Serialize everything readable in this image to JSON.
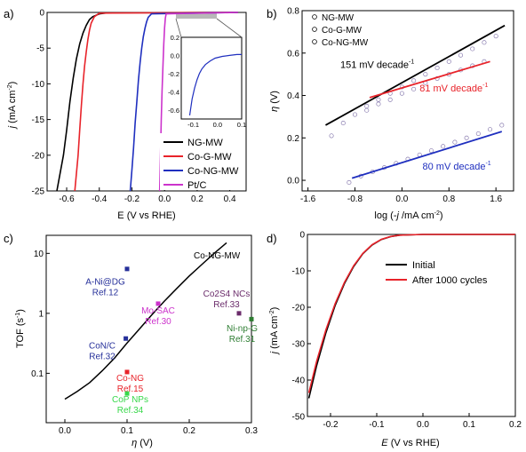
{
  "colors": {
    "black": "#000000",
    "red": "#e8232a",
    "blue": "#1f2fbf",
    "magenta": "#cc33cc",
    "green": "#2e7d32",
    "lightgreen": "#37d84a",
    "purple": "#6b2c6b",
    "darkblue": "#26309a",
    "grey": "#9e9e9e"
  },
  "chart_data": [
    {
      "panel": "a)",
      "type": "line",
      "xlabel": "E (V vs RHE)",
      "ylabel": "j (mA cm-2)",
      "xlim": [
        -0.72,
        0.5
      ],
      "ylim": [
        -25,
        0
      ],
      "xticks": [
        "-0.6",
        "-0.4",
        "-0.2",
        "0.0",
        "0.2",
        "0.4"
      ],
      "xtick_values": [
        -0.6,
        -0.4,
        -0.2,
        0.0,
        0.2,
        0.4
      ],
      "yticks": [
        "0",
        "-5",
        "-10",
        "-15",
        "-20",
        "-25"
      ],
      "ytick_values": [
        0,
        -5,
        -10,
        -15,
        -20,
        -25
      ],
      "legend_position": "bottom-right",
      "series": [
        {
          "name": "NG-MW",
          "color": "black",
          "x": [
            -0.66,
            -0.62,
            -0.6,
            -0.58,
            -0.56,
            -0.54,
            -0.52,
            -0.5,
            -0.48,
            -0.46,
            -0.44,
            -0.4,
            -0.35,
            0.45
          ],
          "y": [
            -25,
            -20,
            -16.5,
            -12.5,
            -9.2,
            -6.5,
            -4.4,
            -2.9,
            -1.8,
            -1.0,
            -0.6,
            -0.2,
            -0.05,
            0
          ]
        },
        {
          "name": "Co-G-MW",
          "color": "red",
          "x": [
            -0.55,
            -0.53,
            -0.52,
            -0.51,
            -0.5,
            -0.49,
            -0.48,
            -0.47,
            -0.46,
            -0.45,
            -0.43,
            -0.4,
            0.45
          ],
          "y": [
            -25,
            -20,
            -16.5,
            -13,
            -10,
            -7.5,
            -5.5,
            -3.8,
            -2.5,
            -1.5,
            -0.6,
            -0.1,
            0
          ]
        },
        {
          "name": "Co-NG-MW",
          "color": "blue",
          "x": [
            -0.21,
            -0.2,
            -0.19,
            -0.18,
            -0.17,
            -0.16,
            -0.15,
            -0.14,
            -0.13,
            -0.12,
            -0.11,
            -0.1,
            -0.08,
            0.45
          ],
          "y": [
            -25,
            -22,
            -19,
            -15.5,
            -12.5,
            -9.5,
            -7,
            -5,
            -3.4,
            -2.2,
            -1.3,
            -0.7,
            -0.2,
            0
          ]
        },
        {
          "name": "Pt/C",
          "color": "magenta",
          "x": [
            -0.03,
            -0.025,
            -0.02,
            -0.015,
            -0.01,
            -0.005,
            0.0,
            0.005,
            0.01,
            0.45
          ],
          "y": [
            -25,
            -20,
            -15,
            -11,
            -7.5,
            -4.5,
            -2.2,
            -0.8,
            -0.2,
            0
          ]
        }
      ],
      "inset": {
        "xlim": [
          -0.15,
          0.1
        ],
        "ylim": [
          -0.7,
          0.2
        ],
        "xticks": [
          "-0.1",
          "0.0",
          "0.1"
        ],
        "xtick_values": [
          -0.1,
          0.0,
          0.1
        ],
        "yticks": [
          "0.2",
          "0.0",
          "-0.2",
          "-0.4",
          "-0.6"
        ],
        "ytick_values": [
          0.2,
          0.0,
          -0.2,
          -0.4,
          -0.6
        ],
        "series": [
          {
            "name": "Co-NG-MW",
            "color": "blue",
            "x": [
              -0.115,
              -0.105,
              -0.095,
              -0.085,
              -0.075,
              -0.065,
              -0.05,
              -0.03,
              -0.01,
              0.02,
              0.05,
              0.08,
              0.1
            ],
            "y": [
              -0.66,
              -0.48,
              -0.36,
              -0.27,
              -0.2,
              -0.15,
              -0.1,
              -0.06,
              -0.03,
              -0.01,
              0.0,
              0.01,
              0.01
            ]
          }
        ]
      }
    },
    {
      "panel": "b)",
      "type": "scatter",
      "xlabel": "log (-j /mA cm-2)",
      "ylabel": "η (V)",
      "xlim": [
        -1.7,
        1.9
      ],
      "ylim": [
        -0.05,
        0.8
      ],
      "xticks": [
        "-1.6",
        "-0.8",
        "0.0",
        "0.8",
        "1.6"
      ],
      "xtick_values": [
        -1.6,
        -0.8,
        0.0,
        0.8,
        1.6
      ],
      "yticks": [
        "0.0",
        "0.2",
        "0.4",
        "0.6",
        "0.8"
      ],
      "ytick_values": [
        0.0,
        0.2,
        0.4,
        0.6,
        0.8
      ],
      "legend_position": "top-left",
      "series": [
        {
          "name": "NG-MW",
          "color": "black",
          "x": [
            -1.2,
            -1.0,
            -0.8,
            -0.6,
            -0.4,
            -0.2,
            0.0,
            0.2,
            0.4,
            0.6,
            0.8,
            1.0,
            1.2,
            1.4,
            1.6
          ],
          "y": [
            0.21,
            0.27,
            0.31,
            0.35,
            0.38,
            0.41,
            0.44,
            0.47,
            0.5,
            0.53,
            0.56,
            0.59,
            0.62,
            0.65,
            0.68
          ]
        },
        {
          "name": "Co-G-MW",
          "color": "red",
          "x": [
            -0.6,
            -0.4,
            -0.2,
            0.0,
            0.2,
            0.4,
            0.6,
            0.8,
            1.0,
            1.2,
            1.4
          ],
          "y": [
            0.33,
            0.36,
            0.38,
            0.41,
            0.43,
            0.46,
            0.48,
            0.5,
            0.52,
            0.54,
            0.56
          ]
        },
        {
          "name": "Co-NG-MW",
          "color": "blue",
          "x": [
            -0.9,
            -0.7,
            -0.5,
            -0.3,
            -0.1,
            0.1,
            0.3,
            0.5,
            0.7,
            0.9,
            1.1,
            1.3,
            1.5,
            1.7
          ],
          "y": [
            -0.01,
            0.02,
            0.04,
            0.06,
            0.08,
            0.1,
            0.12,
            0.14,
            0.16,
            0.18,
            0.2,
            0.22,
            0.24,
            0.26
          ]
        }
      ],
      "fits": [
        {
          "color": "black",
          "x1": -1.3,
          "y1": 0.26,
          "x2": 1.75,
          "y2": 0.73,
          "label": "151 mV decade",
          "label_x": -1.05,
          "label_y": 0.53
        },
        {
          "color": "red",
          "x1": -0.55,
          "y1": 0.39,
          "x2": 1.5,
          "y2": 0.56,
          "label": "81 mV decade",
          "label_x": 0.3,
          "label_y": 0.42
        },
        {
          "color": "blue",
          "x1": -0.85,
          "y1": 0.01,
          "x2": 1.7,
          "y2": 0.23,
          "label": "80 mV decade",
          "label_x": 0.35,
          "label_y": 0.05
        }
      ]
    },
    {
      "panel": "c)",
      "type": "line",
      "xlabel": "η (V)",
      "ylabel": "TOF (s-1)",
      "xlim": [
        -0.03,
        0.3
      ],
      "ylog": true,
      "ylim": [
        0.015,
        20
      ],
      "xticks": [
        "0.0",
        "0.1",
        "0.2",
        "0.3"
      ],
      "xtick_values": [
        0.0,
        0.1,
        0.2,
        0.3
      ],
      "yticks": [
        "10",
        "1",
        "0.1"
      ],
      "ytick_values": [
        10,
        1,
        0.1
      ],
      "series": [
        {
          "name": "Co-NG-MW",
          "color": "black",
          "x": [
            0.0,
            0.02,
            0.04,
            0.06,
            0.08,
            0.1,
            0.12,
            0.14,
            0.16,
            0.18,
            0.2,
            0.22,
            0.24,
            0.26
          ],
          "y": [
            0.037,
            0.05,
            0.07,
            0.11,
            0.18,
            0.32,
            0.55,
            0.95,
            1.6,
            2.6,
            4.2,
            6.5,
            10,
            15
          ]
        }
      ],
      "points": [
        {
          "label": "A-Ni@DG",
          "ref": "Ref.12",
          "x": 0.1,
          "y": 5.5,
          "color": "darkblue",
          "lx": 0.065,
          "ly": 3.0
        },
        {
          "label": "Mo-SAC",
          "ref": "Ref.30",
          "x": 0.15,
          "y": 1.45,
          "color": "magenta",
          "lx": 0.15,
          "ly": 1.0
        },
        {
          "label": "CoN/C",
          "ref": "Ref.32",
          "x": 0.098,
          "y": 0.38,
          "color": "darkblue",
          "lx": 0.06,
          "ly": 0.26
        },
        {
          "label": "Co-NG",
          "ref": "Ref.15",
          "x": 0.1,
          "y": 0.105,
          "color": "red",
          "lx": 0.105,
          "ly": 0.075
        },
        {
          "label": "CoP NPs",
          "ref": "Ref.34",
          "x": 0.1,
          "y": 0.046,
          "color": "lightgreen",
          "lx": 0.105,
          "ly": 0.033
        },
        {
          "label": "Co2S4 NCs",
          "ref": "Ref.33",
          "x": 0.28,
          "y": 1.0,
          "color": "purple",
          "lx": 0.26,
          "ly": 1.9
        },
        {
          "label": "Ni-np-G",
          "ref": "Ref.31",
          "x": 0.3,
          "y": 0.8,
          "color": "green",
          "lx": 0.285,
          "ly": 0.5
        }
      ]
    },
    {
      "panel": "d)",
      "type": "line",
      "xlabel": "E (V vs RHE)",
      "ylabel": "j (mA cm-2)",
      "xlim": [
        -0.25,
        0.2
      ],
      "ylim": [
        -50,
        0
      ],
      "xticks": [
        "-0.2",
        "-0.1",
        "0.0",
        "0.1",
        "0.2"
      ],
      "xtick_values": [
        -0.2,
        -0.1,
        0.0,
        0.1,
        0.2
      ],
      "yticks": [
        "0",
        "-10",
        "-20",
        "-30",
        "-40",
        "-50"
      ],
      "ytick_values": [
        0,
        -10,
        -20,
        -30,
        -40,
        -50
      ],
      "legend_position": "top-right",
      "series": [
        {
          "name": "Initial",
          "color": "black",
          "x": [
            -0.247,
            -0.23,
            -0.21,
            -0.19,
            -0.17,
            -0.15,
            -0.13,
            -0.11,
            -0.09,
            -0.07,
            -0.05,
            0.0,
            0.2
          ],
          "y": [
            -45,
            -36,
            -27,
            -19.5,
            -13.5,
            -8.8,
            -5.3,
            -2.9,
            -1.4,
            -0.6,
            -0.2,
            0,
            0
          ]
        },
        {
          "name": "After 1000 cycles",
          "color": "red",
          "x": [
            -0.247,
            -0.23,
            -0.21,
            -0.19,
            -0.17,
            -0.15,
            -0.13,
            -0.11,
            -0.09,
            -0.07,
            -0.05,
            0.0,
            0.2
          ],
          "y": [
            -43.5,
            -34.8,
            -26.2,
            -19,
            -13.2,
            -8.6,
            -5.2,
            -2.8,
            -1.35,
            -0.55,
            -0.2,
            0,
            0
          ]
        }
      ]
    }
  ]
}
